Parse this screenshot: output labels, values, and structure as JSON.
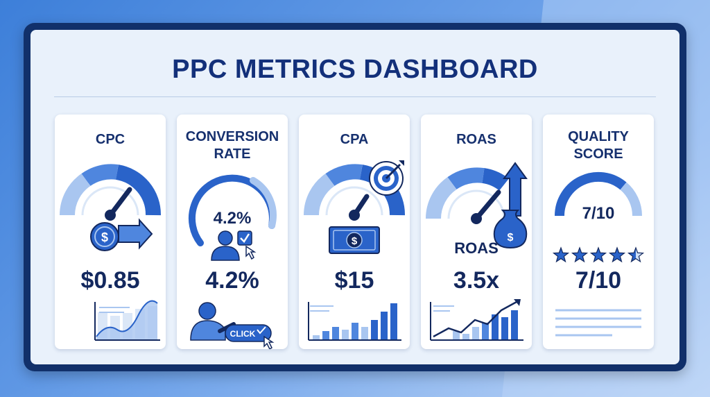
{
  "dashboard": {
    "title": "PPC METRICS DASHBOARD"
  },
  "cards": {
    "cpc": {
      "title": "CPC",
      "value": "$0.85",
      "coin_symbol": "$"
    },
    "conversion_rate": {
      "title_line1": "CONVERSION",
      "title_line2": "RATE",
      "gauge_value": "4.2%",
      "value": "4.2%",
      "button_label": "CLICK"
    },
    "cpa": {
      "title": "CPA",
      "value": "$15",
      "bill_symbol": "$"
    },
    "roas": {
      "title": "ROAS",
      "label": "ROAS",
      "value": "3.5x",
      "bag_symbol": "$"
    },
    "quality_score": {
      "title_line1": "QUALITY",
      "title_line2": "SCORE",
      "gauge_value": "7/10",
      "value": "7/10",
      "stars": 4.5,
      "stars_total": 5
    }
  },
  "colors": {
    "navy": "#13285e",
    "blue": "#2a63c9",
    "mid_blue": "#4f86de",
    "light_blue": "#a9c6f0",
    "frame": "#11306a"
  }
}
